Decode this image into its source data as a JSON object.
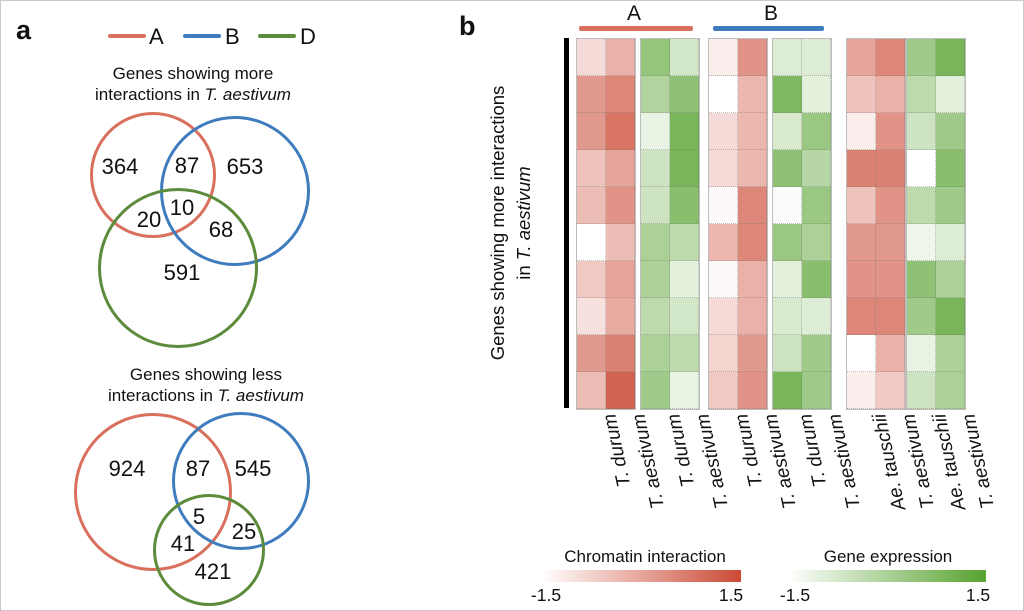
{
  "colors": {
    "a_red": "#d9705e",
    "b_blue": "#3e7cbe",
    "d_green": "#5d8b3c",
    "heat_red_max": "#cc4b36",
    "heat_green_max": "#57a22f"
  },
  "panel_a": {
    "label": "a",
    "legend": [
      {
        "label": "A",
        "color_key": "a_red"
      },
      {
        "label": "B",
        "color_key": "b_blue"
      },
      {
        "label": "D",
        "color_key": "d_green"
      }
    ],
    "venns": [
      {
        "title_line1": "Genes showing more",
        "title_line2_plain": "interactions in ",
        "title_line2_italic": "T. aestivum"
      },
      {
        "title_line1": "Genes showing less",
        "title_line2_plain": "interactions in ",
        "title_line2_italic": "T. aestivum"
      }
    ]
  },
  "panel_b": {
    "label": "b",
    "groups": [
      {
        "label": "A"
      },
      {
        "label": "B"
      }
    ],
    "y_axis": {
      "line1": "Genes showing more interactions",
      "line2_plain": "in ",
      "line2_italic": "T. aestivum"
    },
    "legends": [
      {
        "title": "Chromatin interaction",
        "min_label": "-1.5",
        "max_label": "1.5"
      },
      {
        "title": "Gene expression",
        "min_label": "-1.5",
        "max_label": "1.5"
      }
    ]
  },
  "chart_data": [
    {
      "type": "venn3",
      "title": "Genes showing more interactions in T. aestivum",
      "sets": [
        "A",
        "B",
        "D"
      ],
      "region_values": {
        "A_only": 364,
        "A_B": 87,
        "B_only": 653,
        "A_D": 20,
        "A_B_D": 10,
        "B_D": 68,
        "D_only": 591
      }
    },
    {
      "type": "venn3",
      "title": "Genes showing less interactions in T. aestivum",
      "sets": [
        "A",
        "B",
        "D"
      ],
      "region_values": {
        "A_only": 924,
        "A_B": 87,
        "B_only": 545,
        "A_B_D": 5,
        "B_D": 25,
        "A_D": 41,
        "D_only": 421
      }
    },
    {
      "type": "heatmap",
      "row_group_label": "Genes showing more interactions in T. aestivum",
      "n_rows": 10,
      "scale": [
        -1.5,
        1.5
      ],
      "measures": [
        "Chromatin interaction",
        "Gene expression"
      ],
      "heatmaps": [
        {
          "group": "A",
          "measure": "Chromatin interaction",
          "columns": [
            "T. durum",
            "T. aestivum"
          ],
          "values": [
            [
              -0.9,
              -0.2
            ],
            [
              0.2,
              0.5
            ],
            [
              0.2,
              0.8
            ],
            [
              -0.5,
              0.0
            ],
            [
              -0.4,
              0.3
            ],
            [
              -1.5,
              -0.4
            ],
            [
              -0.6,
              0.0
            ],
            [
              -1.0,
              -0.1
            ],
            [
              0.2,
              0.6
            ],
            [
              -0.4,
              1.1
            ]
          ]
        },
        {
          "group": "A",
          "measure": "Gene expression",
          "columns": [
            "T. durum",
            "T. aestivum"
          ],
          "values": [
            [
              0.4,
              -0.7
            ],
            [
              -0.1,
              0.5
            ],
            [
              -1.1,
              0.9
            ],
            [
              -0.6,
              0.9
            ],
            [
              -0.6,
              0.6
            ],
            [
              0.0,
              -0.3
            ],
            [
              0.0,
              -1.0
            ],
            [
              -0.3,
              -0.7
            ],
            [
              0.0,
              -0.3
            ],
            [
              0.2,
              -1.1
            ]
          ]
        },
        {
          "group": "B",
          "measure": "Chromatin interaction",
          "columns": [
            "T. durum",
            "T. aestivum"
          ],
          "values": [
            [
              -1.2,
              0.3
            ],
            [
              -1.5,
              -0.3
            ],
            [
              -0.9,
              -0.3
            ],
            [
              -0.9,
              -0.3
            ],
            [
              -1.4,
              0.5
            ],
            [
              -0.3,
              0.5
            ],
            [
              -1.4,
              -0.2
            ],
            [
              -0.9,
              -0.2
            ],
            [
              -0.8,
              0.2
            ],
            [
              -0.6,
              0.3
            ]
          ]
        },
        {
          "group": "B",
          "measure": "Gene expression",
          "columns": [
            "T. durum",
            "T. aestivum"
          ],
          "values": [
            [
              -0.9,
              -0.9
            ],
            [
              0.8,
              -1.0
            ],
            [
              -0.8,
              0.3
            ],
            [
              0.5,
              -0.2
            ],
            [
              -1.4,
              0.3
            ],
            [
              0.3,
              0.0
            ],
            [
              -1.0,
              0.6
            ],
            [
              -0.8,
              -0.9
            ],
            [
              -0.6,
              0.2
            ],
            [
              0.9,
              0.2
            ]
          ]
        },
        {
          "group": "D",
          "measure": "Chromatin interaction",
          "columns": [
            "Ae. tauschii",
            "T. aestivum"
          ],
          "values": [
            [
              0.0,
              0.5
            ],
            [
              -0.5,
              -0.2
            ],
            [
              -1.2,
              0.3
            ],
            [
              0.6,
              0.6
            ],
            [
              -0.5,
              0.3
            ],
            [
              0.2,
              0.2
            ],
            [
              0.3,
              0.3
            ],
            [
              0.5,
              0.5
            ],
            [
              -1.5,
              -0.2
            ],
            [
              -1.2,
              -0.6
            ]
          ]
        },
        {
          "group": "D",
          "measure": "Gene expression",
          "columns": [
            "Ae. tauschii",
            "T. aestivum"
          ],
          "values": [
            [
              0.2,
              0.9
            ],
            [
              -0.3,
              -1.0
            ],
            [
              -0.6,
              0.2
            ],
            [
              -1.5,
              0.6
            ],
            [
              -0.3,
              0.2
            ],
            [
              -1.2,
              -0.9
            ],
            [
              0.5,
              0.0
            ],
            [
              0.2,
              0.9
            ],
            [
              -1.1,
              0.0
            ],
            [
              -0.6,
              0.0
            ]
          ]
        }
      ]
    }
  ]
}
